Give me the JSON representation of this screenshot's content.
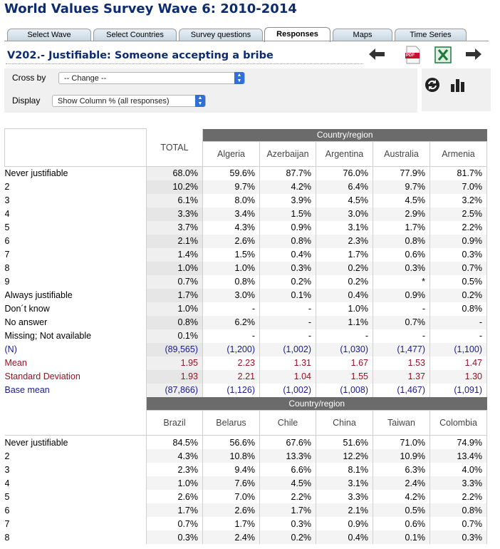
{
  "site_title": "World Values Survey Wave 6: 2010-2014",
  "tabs": [
    {
      "label": "Select Wave",
      "active": false
    },
    {
      "label": "Select Countries",
      "active": false
    },
    {
      "label": "Survey questions",
      "active": false
    },
    {
      "label": "Responses",
      "active": true
    },
    {
      "label": "Maps",
      "active": false
    },
    {
      "label": "Time Series",
      "active": false
    }
  ],
  "variable_title": "V202.- Justifiable: Someone accepting a bribe",
  "icons": {
    "back": "arrow-left-icon",
    "pdf": "pdf-icon",
    "excel": "excel-icon",
    "forward": "arrow-right-icon",
    "refresh": "refresh-icon",
    "chart": "bar-chart-icon",
    "pdf_text": "PDF"
  },
  "controls": {
    "crossby_label": "Cross by",
    "crossby_value": "-- Change --",
    "display_label": "Display",
    "display_value": "Show Column % (all responses)"
  },
  "colors": {
    "title": "#0d2c6e",
    "header_bar": "#6b6b6b",
    "blue_rows": "#1a1a8c",
    "red_rows": "#9a1025",
    "select_arrow": "#2f6fd6"
  },
  "table1": {
    "group_label": "Country/region",
    "total_label": "TOTAL",
    "columns": [
      "Algeria",
      "Azerbaijan",
      "Argentina",
      "Australia",
      "Armenia"
    ],
    "rows": [
      {
        "label": "Never justifiable",
        "style": "normal",
        "values": [
          "68.0%",
          "59.6%",
          "87.7%",
          "76.0%",
          "77.9%",
          "81.7%"
        ]
      },
      {
        "label": "2",
        "style": "normal",
        "values": [
          "10.2%",
          "9.7%",
          "4.2%",
          "6.4%",
          "9.7%",
          "7.0%"
        ]
      },
      {
        "label": "3",
        "style": "normal",
        "values": [
          "6.1%",
          "8.0%",
          "3.9%",
          "4.5%",
          "4.5%",
          "3.2%"
        ]
      },
      {
        "label": "4",
        "style": "normal",
        "values": [
          "3.3%",
          "3.4%",
          "1.5%",
          "3.0%",
          "2.9%",
          "2.5%"
        ]
      },
      {
        "label": "5",
        "style": "normal",
        "values": [
          "3.7%",
          "4.3%",
          "0.9%",
          "3.1%",
          "1.7%",
          "2.2%"
        ]
      },
      {
        "label": "6",
        "style": "normal",
        "values": [
          "2.1%",
          "2.6%",
          "0.8%",
          "2.3%",
          "0.8%",
          "0.9%"
        ]
      },
      {
        "label": "7",
        "style": "normal",
        "values": [
          "1.4%",
          "1.5%",
          "0.4%",
          "1.7%",
          "0.6%",
          "0.3%"
        ]
      },
      {
        "label": "8",
        "style": "normal",
        "values": [
          "1.0%",
          "1.0%",
          "0.3%",
          "0.2%",
          "0.3%",
          "0.7%"
        ]
      },
      {
        "label": "9",
        "style": "normal",
        "values": [
          "0.7%",
          "0.8%",
          "0.2%",
          "0.2%",
          "*",
          "0.5%"
        ]
      },
      {
        "label": "Always justifiable",
        "style": "normal",
        "values": [
          "1.7%",
          "3.0%",
          "0.1%",
          "0.4%",
          "0.9%",
          "0.2%"
        ]
      },
      {
        "label": "Don´t know",
        "style": "normal",
        "values": [
          "1.0%",
          "-",
          "-",
          "1.0%",
          "-",
          "0.8%"
        ]
      },
      {
        "label": "No answer",
        "style": "normal",
        "values": [
          "0.8%",
          "6.2%",
          "-",
          "1.1%",
          "0.7%",
          "-"
        ]
      },
      {
        "label": "Missing; Not available",
        "style": "normal",
        "values": [
          "0.1%",
          "-",
          "-",
          "-",
          "-",
          "-"
        ]
      },
      {
        "label": "(N)",
        "style": "blue",
        "values": [
          "(89,565)",
          "(1,200)",
          "(1,002)",
          "(1,030)",
          "(1,477)",
          "(1,100)"
        ]
      },
      {
        "label": "Mean",
        "style": "red",
        "values": [
          "1.95",
          "2.23",
          "1.31",
          "1.67",
          "1.53",
          "1.47"
        ]
      },
      {
        "label": "Standard Deviation",
        "style": "red",
        "values": [
          "1.93",
          "2.21",
          "1.04",
          "1.55",
          "1.37",
          "1.30"
        ]
      },
      {
        "label": "Base mean",
        "style": "blue",
        "values": [
          "(87,866)",
          "(1,126)",
          "(1,002)",
          "(1,008)",
          "(1,467)",
          "(1,091)"
        ]
      }
    ]
  },
  "table2": {
    "group_label": "Country/region",
    "columns": [
      "Brazil",
      "Belarus",
      "Chile",
      "China",
      "Taiwan",
      "Colombia"
    ],
    "rows": [
      {
        "label": "Never justifiable",
        "values": [
          "84.5%",
          "56.6%",
          "67.6%",
          "51.6%",
          "71.0%",
          "74.9%"
        ]
      },
      {
        "label": "2",
        "values": [
          "4.3%",
          "10.8%",
          "13.3%",
          "12.2%",
          "10.9%",
          "13.4%"
        ]
      },
      {
        "label": "3",
        "values": [
          "2.3%",
          "9.4%",
          "6.6%",
          "8.1%",
          "6.3%",
          "4.0%"
        ]
      },
      {
        "label": "4",
        "values": [
          "1.0%",
          "7.6%",
          "4.5%",
          "3.1%",
          "2.4%",
          "3.3%"
        ]
      },
      {
        "label": "5",
        "values": [
          "2.6%",
          "7.0%",
          "2.2%",
          "3.3%",
          "4.2%",
          "2.2%"
        ]
      },
      {
        "label": "6",
        "values": [
          "1.7%",
          "2.6%",
          "1.7%",
          "2.1%",
          "0.5%",
          "0.8%"
        ]
      },
      {
        "label": "7",
        "values": [
          "0.7%",
          "1.7%",
          "0.3%",
          "0.9%",
          "0.6%",
          "0.7%"
        ]
      },
      {
        "label": "8",
        "values": [
          "0.3%",
          "2.4%",
          "0.2%",
          "0.4%",
          "0.1%",
          "0.3%"
        ]
      }
    ]
  }
}
